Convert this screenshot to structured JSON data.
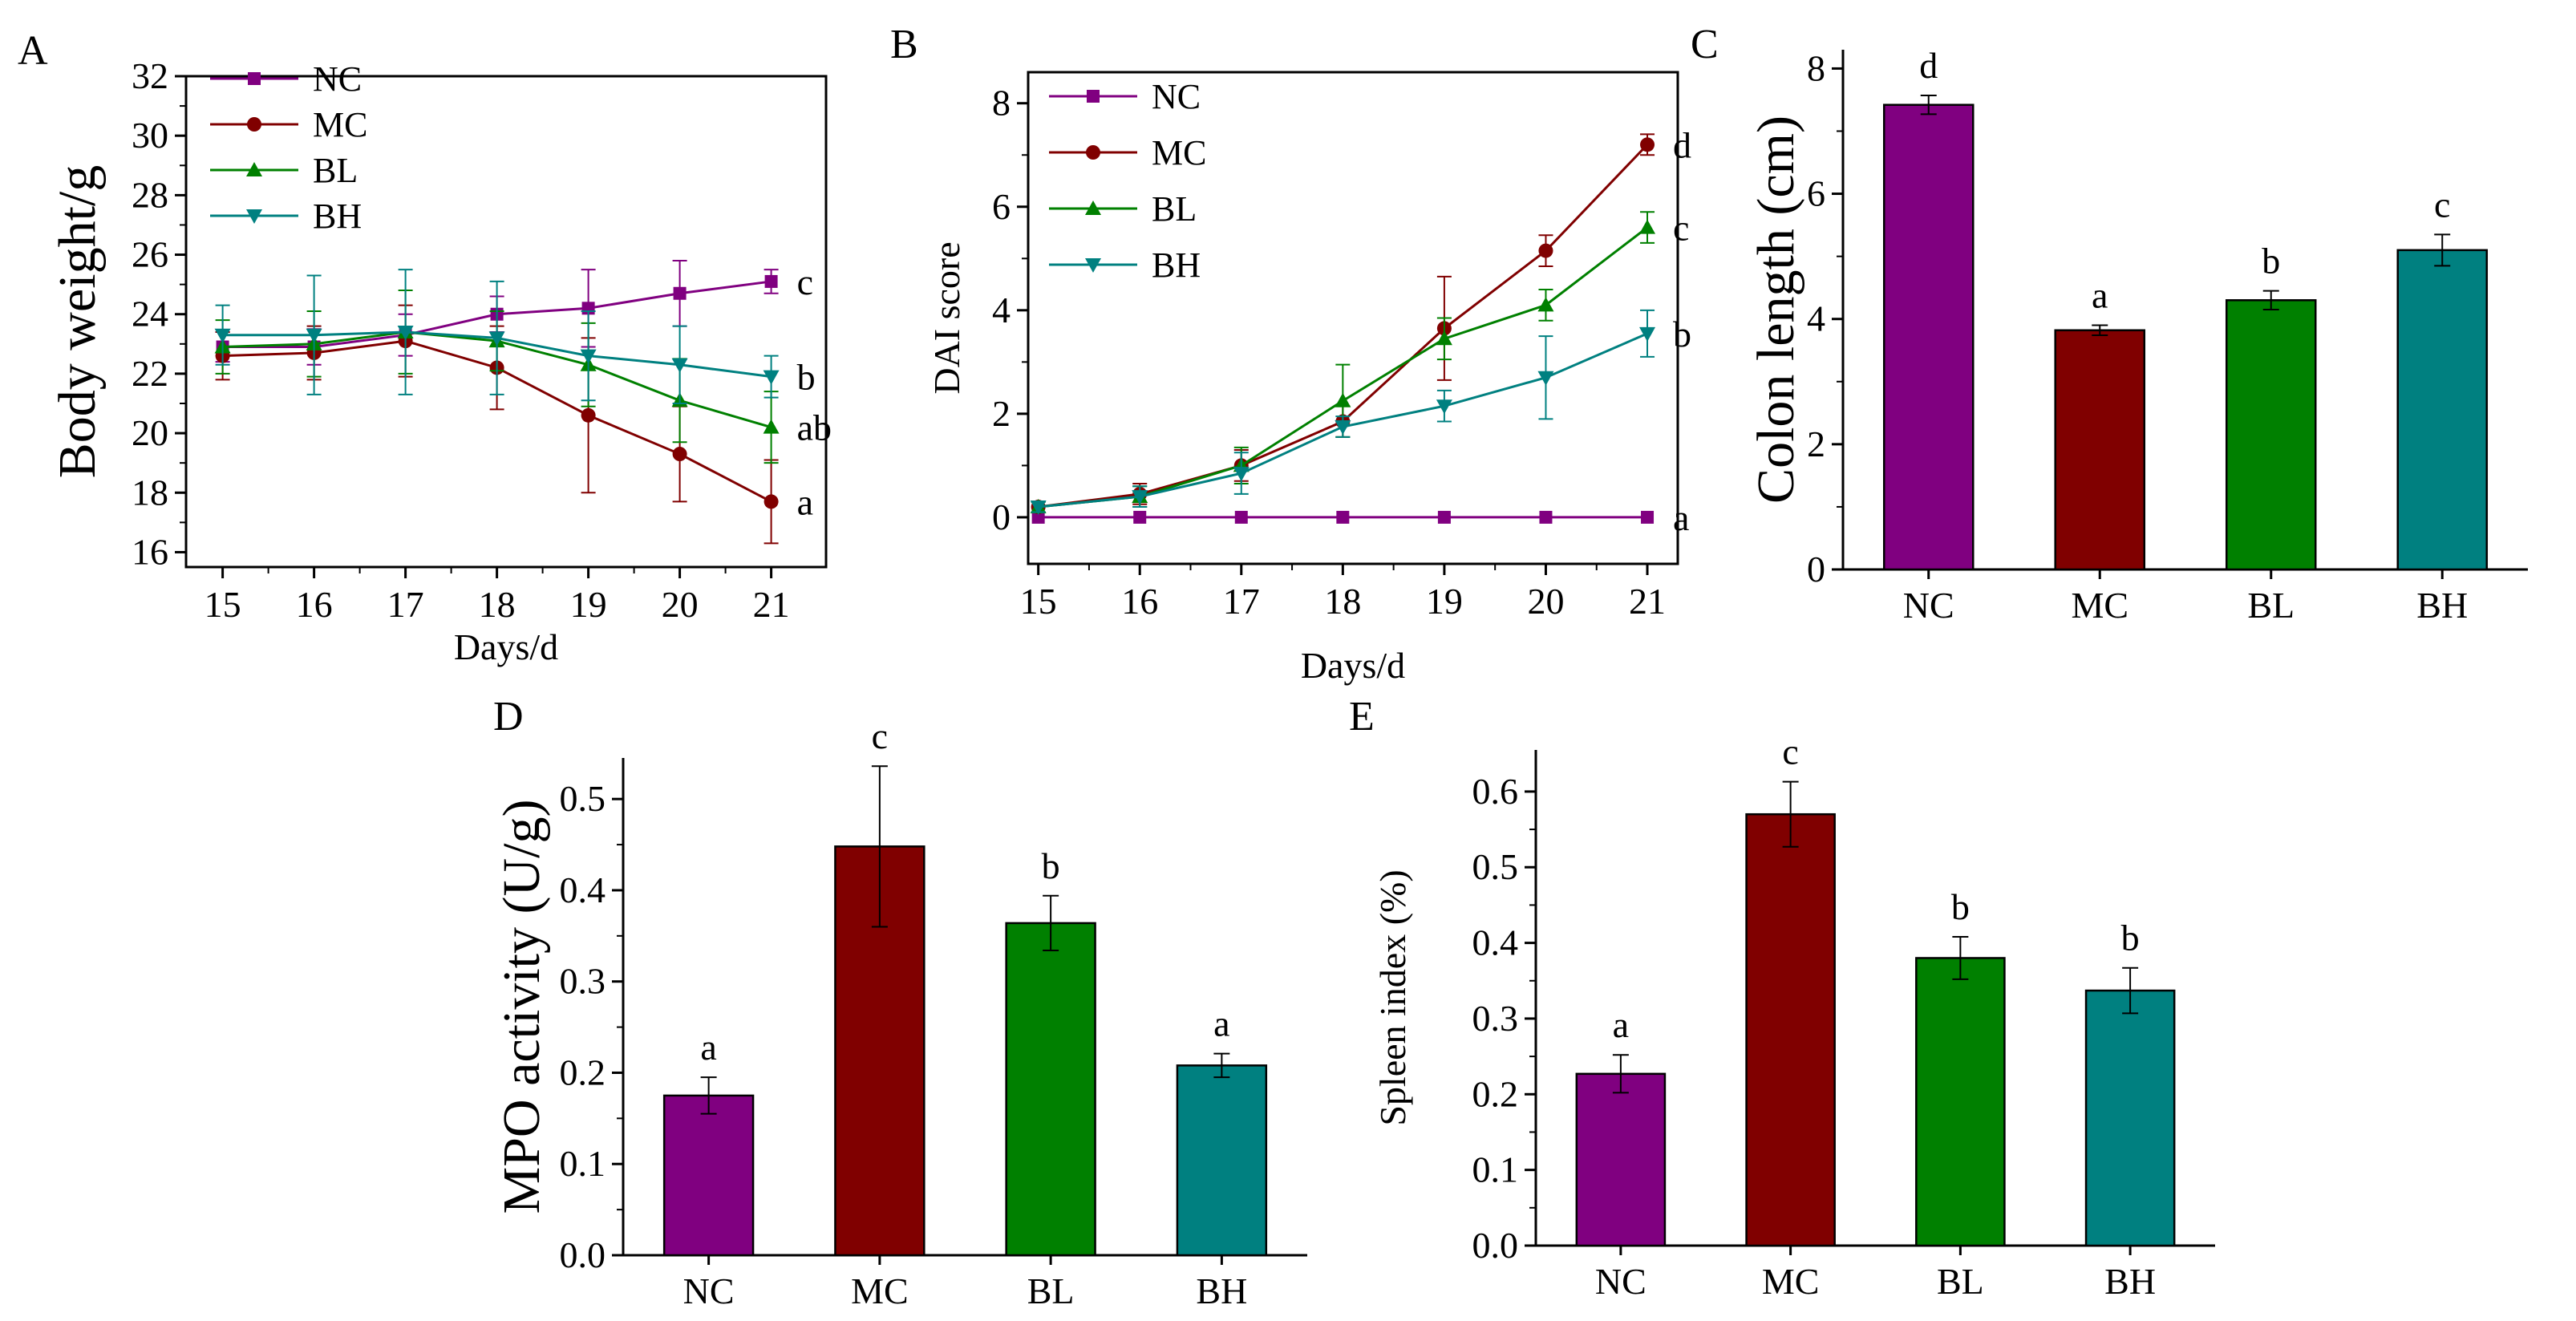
{
  "colors": {
    "NC": "#800080",
    "MC": "#800000",
    "BL": "#008000",
    "BH": "#008080"
  },
  "chart_data": [
    {
      "panel": "A",
      "type": "line",
      "xlabel": "Days/d",
      "ylabel": "Body weight/g",
      "x": [
        15,
        16,
        17,
        18,
        19,
        20,
        21
      ],
      "xlim": [
        14.6,
        21.6
      ],
      "ylim": [
        15.5,
        32
      ],
      "yticks": [
        16,
        18,
        20,
        22,
        24,
        26,
        28,
        30,
        32
      ],
      "legend_position": "top-left",
      "series": [
        {
          "name": "NC",
          "marker": "square",
          "values": [
            22.9,
            22.9,
            23.3,
            24.0,
            24.2,
            24.7,
            25.1
          ],
          "errors": [
            0.5,
            0.6,
            0.7,
            0.6,
            1.3,
            1.1,
            0.4
          ],
          "label": "c"
        },
        {
          "name": "MC",
          "marker": "circle",
          "values": [
            22.6,
            22.7,
            23.1,
            22.2,
            20.6,
            19.3,
            17.7
          ],
          "errors": [
            0.8,
            0.9,
            1.2,
            1.4,
            2.6,
            1.6,
            1.4
          ],
          "label": "a"
        },
        {
          "name": "BL",
          "marker": "triangle-up",
          "values": [
            22.9,
            23.0,
            23.4,
            23.1,
            22.3,
            21.1,
            20.2
          ],
          "errors": [
            0.9,
            1.1,
            1.4,
            1.0,
            1.4,
            1.4,
            1.2
          ],
          "label": "ab"
        },
        {
          "name": "BH",
          "marker": "triangle-down",
          "values": [
            23.3,
            23.3,
            23.4,
            23.2,
            22.6,
            22.3,
            21.9
          ],
          "errors": [
            1.0,
            2.0,
            2.1,
            1.9,
            1.5,
            1.3,
            0.7
          ],
          "label": "b"
        }
      ]
    },
    {
      "panel": "B",
      "type": "line",
      "xlabel": "Days/d",
      "ylabel": "DAI score",
      "x": [
        15,
        16,
        17,
        18,
        19,
        20,
        21
      ],
      "xlim": [
        14.9,
        21.3
      ],
      "ylim": [
        -0.9,
        8.6
      ],
      "yticks": [
        0,
        2,
        4,
        6,
        8
      ],
      "legend_position": "top-left",
      "series": [
        {
          "name": "NC",
          "marker": "square",
          "values": [
            0,
            0,
            0,
            0,
            0,
            0,
            0
          ],
          "errors": [
            0,
            0,
            0,
            0,
            0,
            0,
            0
          ],
          "label": "a"
        },
        {
          "name": "MC",
          "marker": "circle",
          "values": [
            0.2,
            0.45,
            1.0,
            1.85,
            3.65,
            5.15,
            7.2
          ],
          "errors": [
            0.1,
            0.2,
            0.3,
            0.3,
            1.0,
            0.3,
            0.2
          ],
          "label": "d"
        },
        {
          "name": "BL",
          "marker": "triangle-up",
          "values": [
            0.2,
            0.4,
            1.0,
            2.25,
            3.45,
            4.1,
            5.6
          ],
          "errors": [
            0.1,
            0.2,
            0.35,
            0.7,
            0.4,
            0.3,
            0.3
          ],
          "label": "c"
        },
        {
          "name": "BH",
          "marker": "triangle-down",
          "values": [
            0.2,
            0.4,
            0.85,
            1.75,
            2.15,
            2.7,
            3.55
          ],
          "errors": [
            0.1,
            0.2,
            0.4,
            0.2,
            0.3,
            0.8,
            0.45
          ],
          "label": "b"
        }
      ]
    },
    {
      "panel": "C",
      "type": "bar",
      "ylabel": "Colon length (cm)",
      "categories": [
        "NC",
        "MC",
        "BL",
        "BH"
      ],
      "values": [
        7.42,
        3.82,
        4.3,
        5.1
      ],
      "errors": [
        0.15,
        0.08,
        0.15,
        0.25
      ],
      "labels": [
        "d",
        "a",
        "b",
        "c"
      ],
      "ylim": [
        0,
        8.3
      ],
      "yticks": [
        0,
        2,
        4,
        6,
        8
      ]
    },
    {
      "panel": "D",
      "type": "bar",
      "ylabel": "MPO activity (U/g)",
      "categories": [
        "NC",
        "MC",
        "BL",
        "BH"
      ],
      "values": [
        0.175,
        0.448,
        0.364,
        0.208
      ],
      "errors": [
        0.02,
        0.088,
        0.03,
        0.013
      ],
      "labels": [
        "a",
        "c",
        "b",
        "a"
      ],
      "ylim": [
        0,
        0.545
      ],
      "yticks": [
        0.0,
        0.1,
        0.2,
        0.3,
        0.4,
        0.5
      ]
    },
    {
      "panel": "E",
      "type": "bar",
      "ylabel": "Spleen index (%)",
      "categories": [
        "NC",
        "MC",
        "BL",
        "BH"
      ],
      "values": [
        0.227,
        0.57,
        0.38,
        0.337
      ],
      "errors": [
        0.025,
        0.043,
        0.028,
        0.03
      ],
      "labels": [
        "a",
        "c",
        "b",
        "b"
      ],
      "ylim": [
        0,
        0.655
      ],
      "yticks": [
        0.0,
        0.1,
        0.2,
        0.3,
        0.4,
        0.5,
        0.6
      ]
    }
  ]
}
